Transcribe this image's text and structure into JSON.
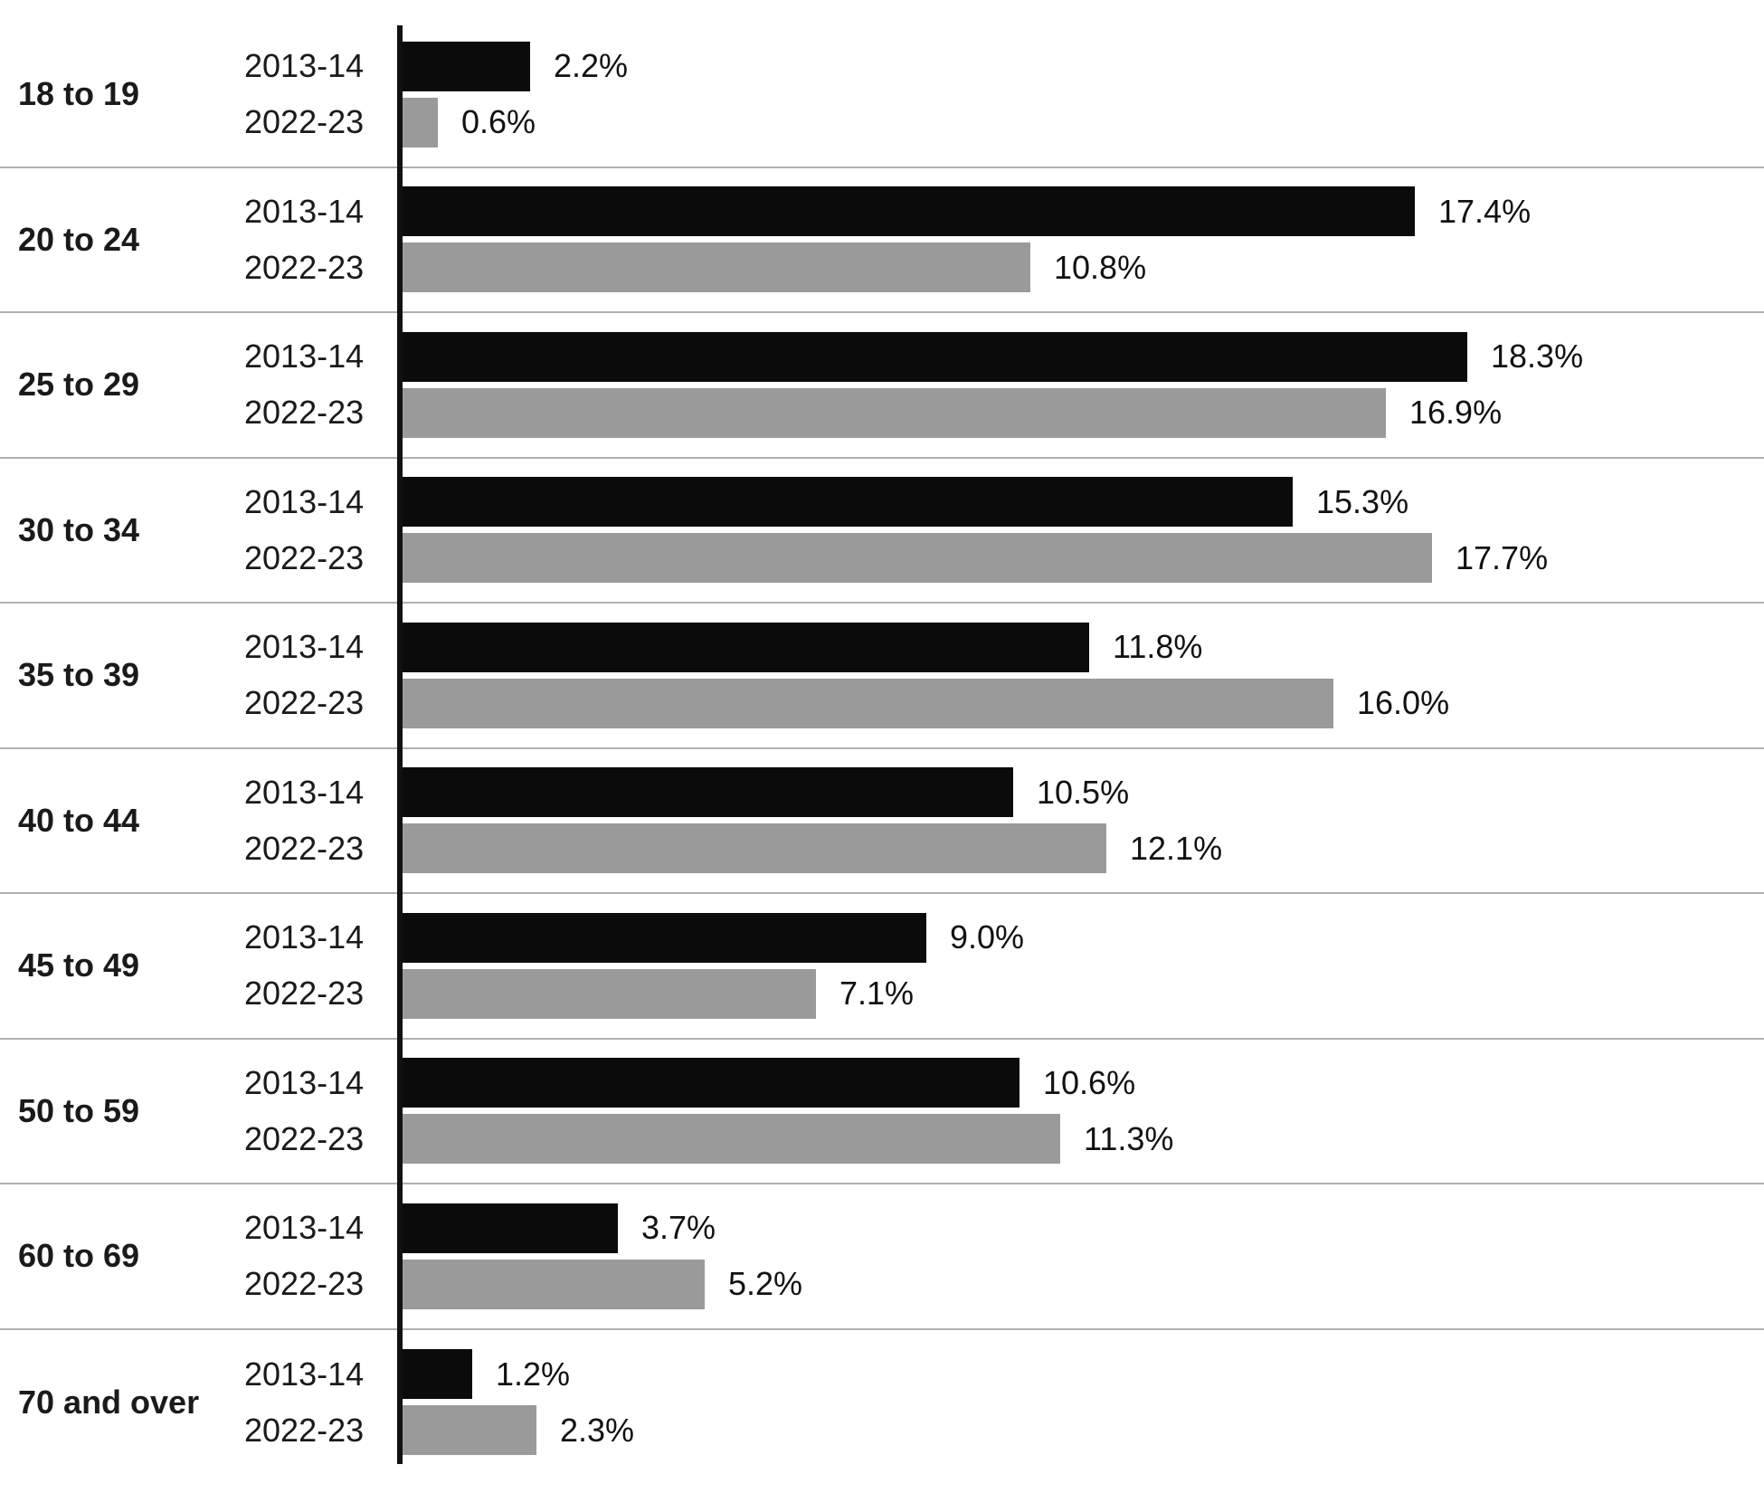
{
  "chart_data": {
    "type": "bar",
    "orientation": "horizontal",
    "title": "",
    "xlabel": "",
    "ylabel": "",
    "grid": false,
    "legend_position": "none (series name labeled beside each bar)",
    "xlim": [
      0,
      23.4
    ],
    "categories": [
      "18 to 19",
      "20 to 24",
      "25 to 29",
      "30 to 34",
      "35 to 39",
      "40 to 44",
      "45 to 49",
      "50 to 59",
      "60 to 69",
      "70 and over"
    ],
    "series": [
      {
        "name": "2013-14",
        "color": "#0b0b0c",
        "values": [
          2.2,
          17.4,
          18.3,
          15.3,
          11.8,
          10.5,
          9.0,
          10.6,
          3.7,
          1.2
        ],
        "labels": [
          "2.2%",
          "17.4%",
          "18.3%",
          "15.3%",
          "11.8%",
          "10.5%",
          "9.0%",
          "10.6%",
          "3.7%",
          "1.2%"
        ]
      },
      {
        "name": "2022-23",
        "color": "#9a9a9a",
        "values": [
          0.6,
          10.8,
          16.9,
          17.7,
          16.0,
          12.1,
          7.1,
          11.3,
          5.2,
          2.3
        ],
        "labels": [
          "0.6%",
          "10.8%",
          "16.9%",
          "17.7%",
          "16.0%",
          "12.1%",
          "7.1%",
          "11.3%",
          "5.2%",
          "2.3%"
        ]
      }
    ],
    "style": {
      "axis_line_color": "#111111",
      "separator_line_color": "#b0b0b0",
      "background": "#ffffff",
      "label_text_color": "#1a1a1a"
    }
  }
}
